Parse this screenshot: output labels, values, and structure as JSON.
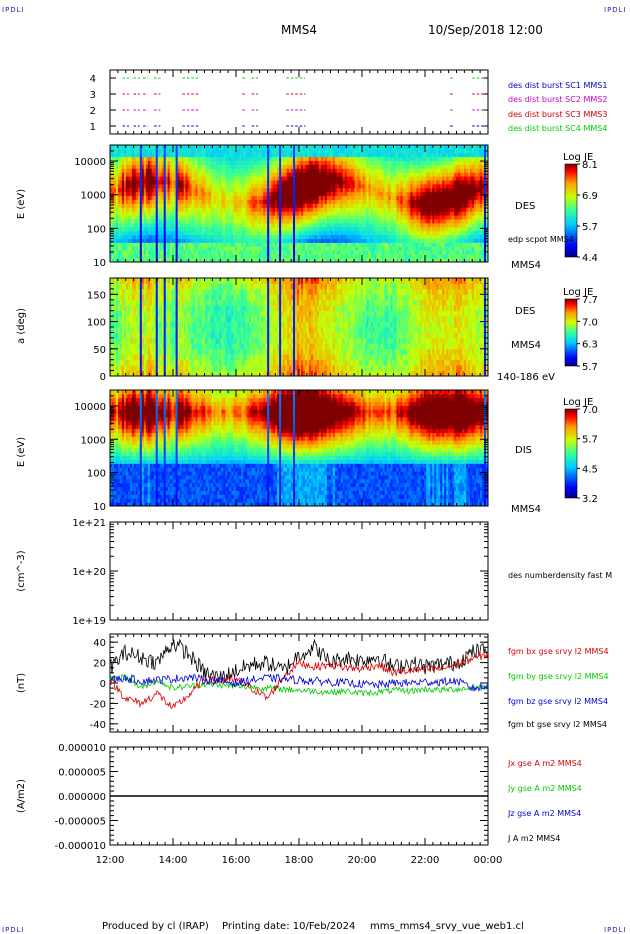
{
  "header": {
    "corner_tl": "IPDLI",
    "corner_tr": "IPDLI",
    "corner_bl": "IPDLI",
    "corner_br": "IPDLI",
    "spacecraft": "MMS4",
    "datetime": "10/Sep/2018 12:00"
  },
  "footer": {
    "produced": "Produced by cl (IRAP)",
    "printing": "Printing date: 10/Feb/2024",
    "filename": "mms_mms4_srvy_vue_web1.cl"
  },
  "colors": {
    "mms1": "#0000cc",
    "mms2": "#cc00cc",
    "mms3": "#cc0000",
    "mms4": "#00cc00",
    "bx": "#dd0000",
    "by": "#00cc00",
    "bz": "#0000dd",
    "bt": "#000000"
  },
  "chart_data": [
    {
      "type": "scatter",
      "name": "burst-availability",
      "ylim": [
        0.5,
        4.5
      ],
      "yticks": [
        "4",
        "3",
        "2",
        "1"
      ],
      "legend": [
        "des dist burst SC1 MMS1",
        "des dist burst SC2 MMS2",
        "des dist burst SC3 MMS3",
        "des dist burst SC4 MMS4"
      ],
      "segments_hours": [
        [
          0.4,
          0.6
        ],
        [
          0.75,
          0.95
        ],
        [
          1.05,
          1.2
        ],
        [
          1.4,
          1.6
        ],
        [
          2.3,
          2.8
        ],
        [
          4.2,
          4.3
        ],
        [
          4.5,
          4.7
        ],
        [
          5.6,
          6.2
        ],
        [
          10.8,
          10.9
        ],
        [
          11.5,
          11.9
        ]
      ]
    },
    {
      "type": "heatmap",
      "name": "des-energy-spectrogram",
      "ylabel": "E (eV)",
      "yscale": "log",
      "ylim": [
        10,
        30000
      ],
      "yticks": [
        "10000",
        "1000",
        "100",
        "10"
      ],
      "colorbar_title": "Log JE",
      "colorbar_ticks": [
        "8.1",
        "6.9",
        "5.7",
        "4.4"
      ],
      "side_labels": [
        "DES",
        "edp scpot MMS4",
        "MMS4"
      ]
    },
    {
      "type": "heatmap",
      "name": "des-pitch-angle",
      "ylabel": "a (deg)",
      "ylim": [
        0,
        180
      ],
      "yticks": [
        "150",
        "100",
        "50",
        "0"
      ],
      "colorbar_title": "Log JE",
      "colorbar_ticks": [
        "7.7",
        "7.0",
        "6.3",
        "5.7"
      ],
      "side_labels": [
        "DES",
        "MMS4",
        "140-186 eV"
      ]
    },
    {
      "type": "heatmap",
      "name": "dis-energy-spectrogram",
      "ylabel": "E (eV)",
      "yscale": "log",
      "ylim": [
        10,
        30000
      ],
      "yticks": [
        "10000",
        "1000",
        "100",
        "10"
      ],
      "colorbar_title": "Log JE",
      "colorbar_ticks": [
        "7.0",
        "5.7",
        "4.5",
        "3.2"
      ],
      "side_labels": [
        "DIS",
        "MMS4"
      ]
    },
    {
      "type": "line",
      "name": "number-density",
      "ylabel": "(cm^-3)",
      "yscale": "log",
      "ylim": [
        1e+19,
        1e+21
      ],
      "yticks": [
        "1e+21",
        "1e+20",
        "1e+19"
      ],
      "legend": [
        "des numberdensity fast M"
      ],
      "series": []
    },
    {
      "type": "line",
      "name": "magnetic-field",
      "ylabel": "(nT)",
      "ylim": [
        -48,
        48
      ],
      "yticks": [
        "40",
        "20",
        "0",
        "-20",
        "-40"
      ],
      "legend": [
        "fgm bx gse srvy l2 MMS4",
        "fgm by gse srvy l2 MMS4",
        "fgm bz gse srvy l2 MMS4",
        "fgm bt gse srvy l2 MMS4"
      ],
      "x_hours": [
        0,
        0.5,
        1,
        1.5,
        2,
        2.5,
        3,
        3.5,
        4,
        4.5,
        5,
        5.5,
        6,
        6.5,
        7,
        7.5,
        8,
        8.5,
        9,
        9.5,
        10,
        10.5,
        11,
        11.5,
        12
      ],
      "series": [
        {
          "name": "bx",
          "values": [
            3,
            -15,
            -20,
            -10,
            -25,
            -12,
            4,
            2,
            3,
            -5,
            -15,
            6,
            20,
            16,
            18,
            15,
            14,
            18,
            10,
            12,
            13,
            14,
            18,
            24,
            28
          ]
        },
        {
          "name": "by",
          "values": [
            4,
            6,
            -5,
            3,
            -5,
            -3,
            -1,
            -2,
            -3,
            -4,
            -5,
            -6,
            -7,
            -8,
            -9,
            -8,
            -10,
            -9,
            -7,
            -8,
            -6,
            -7,
            -6,
            -5,
            -3
          ]
        },
        {
          "name": "bz",
          "values": [
            3,
            5,
            2,
            3,
            4,
            6,
            3,
            2,
            0,
            3,
            5,
            4,
            3,
            2,
            1,
            0,
            -1,
            -2,
            0,
            0,
            1,
            1,
            2,
            -5,
            -4
          ]
        },
        {
          "name": "bt",
          "values": [
            15,
            30,
            25,
            20,
            40,
            28,
            10,
            5,
            12,
            18,
            20,
            12,
            28,
            35,
            20,
            25,
            22,
            26,
            15,
            20,
            16,
            18,
            20,
            30,
            33
          ]
        }
      ]
    },
    {
      "type": "line",
      "name": "current-density",
      "ylabel": "(A/m2)",
      "ylim": [
        -1e-05,
        1e-05
      ],
      "yticks": [
        "0.000010",
        "0.000005",
        "0.000000",
        "-0.000005",
        "-0.000010"
      ],
      "legend": [
        "Jx gse A m2 MMS4",
        "Jy gse A m2 MMS4",
        "Jz gse A m2 MMS4",
        "J A m2 MMS4"
      ],
      "series": [
        {
          "name": "J",
          "values": [
            0,
            0,
            0,
            0,
            0,
            0,
            0,
            0,
            0,
            0,
            0,
            0,
            0
          ]
        }
      ]
    }
  ],
  "xaxis": {
    "ticks": [
      "12:00",
      "14:00",
      "16:00",
      "18:00",
      "20:00",
      "22:00",
      "00:00"
    ]
  }
}
